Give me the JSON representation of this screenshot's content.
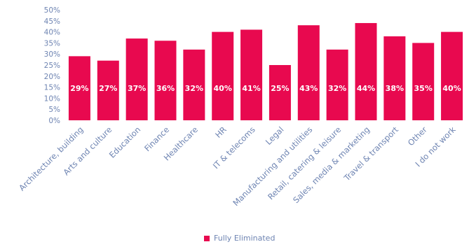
{
  "chart_data": {
    "type": "bar",
    "categories": [
      "Architecture, building",
      "Arts and culture",
      "Education",
      "Finance",
      "Healthcare",
      "HR",
      "IT & telecoms",
      "Legal",
      "Manufacturing and utilities",
      "Retail, catering & leisure",
      "Sales, media & marketing",
      "Travel & transport",
      "Other",
      "I do not work"
    ],
    "series": [
      {
        "name": "Fully Eliminated",
        "values": [
          0.29,
          0.27,
          0.37,
          0.36,
          0.32,
          0.4,
          0.41,
          0.25,
          0.43,
          0.32,
          0.44,
          0.38,
          0.35,
          0.4
        ],
        "labels": [
          "29%",
          "27%",
          "37%",
          "36%",
          "32%",
          "40%",
          "41%",
          "25%",
          "43%",
          "32%",
          "44%",
          "38%",
          "35%",
          "40%"
        ]
      }
    ],
    "y_ticks": [
      "0%",
      "5%",
      "10%",
      "15%",
      "20%",
      "25%",
      "30%",
      "35%",
      "40%",
      "45%",
      "50%"
    ],
    "ylim": [
      0,
      0.5
    ],
    "grid": false,
    "legend_position": "bottom"
  },
  "colors": {
    "bar": "#e8094f",
    "axis_text": "#6e84b2"
  },
  "legend": {
    "label": "Fully Eliminated"
  }
}
